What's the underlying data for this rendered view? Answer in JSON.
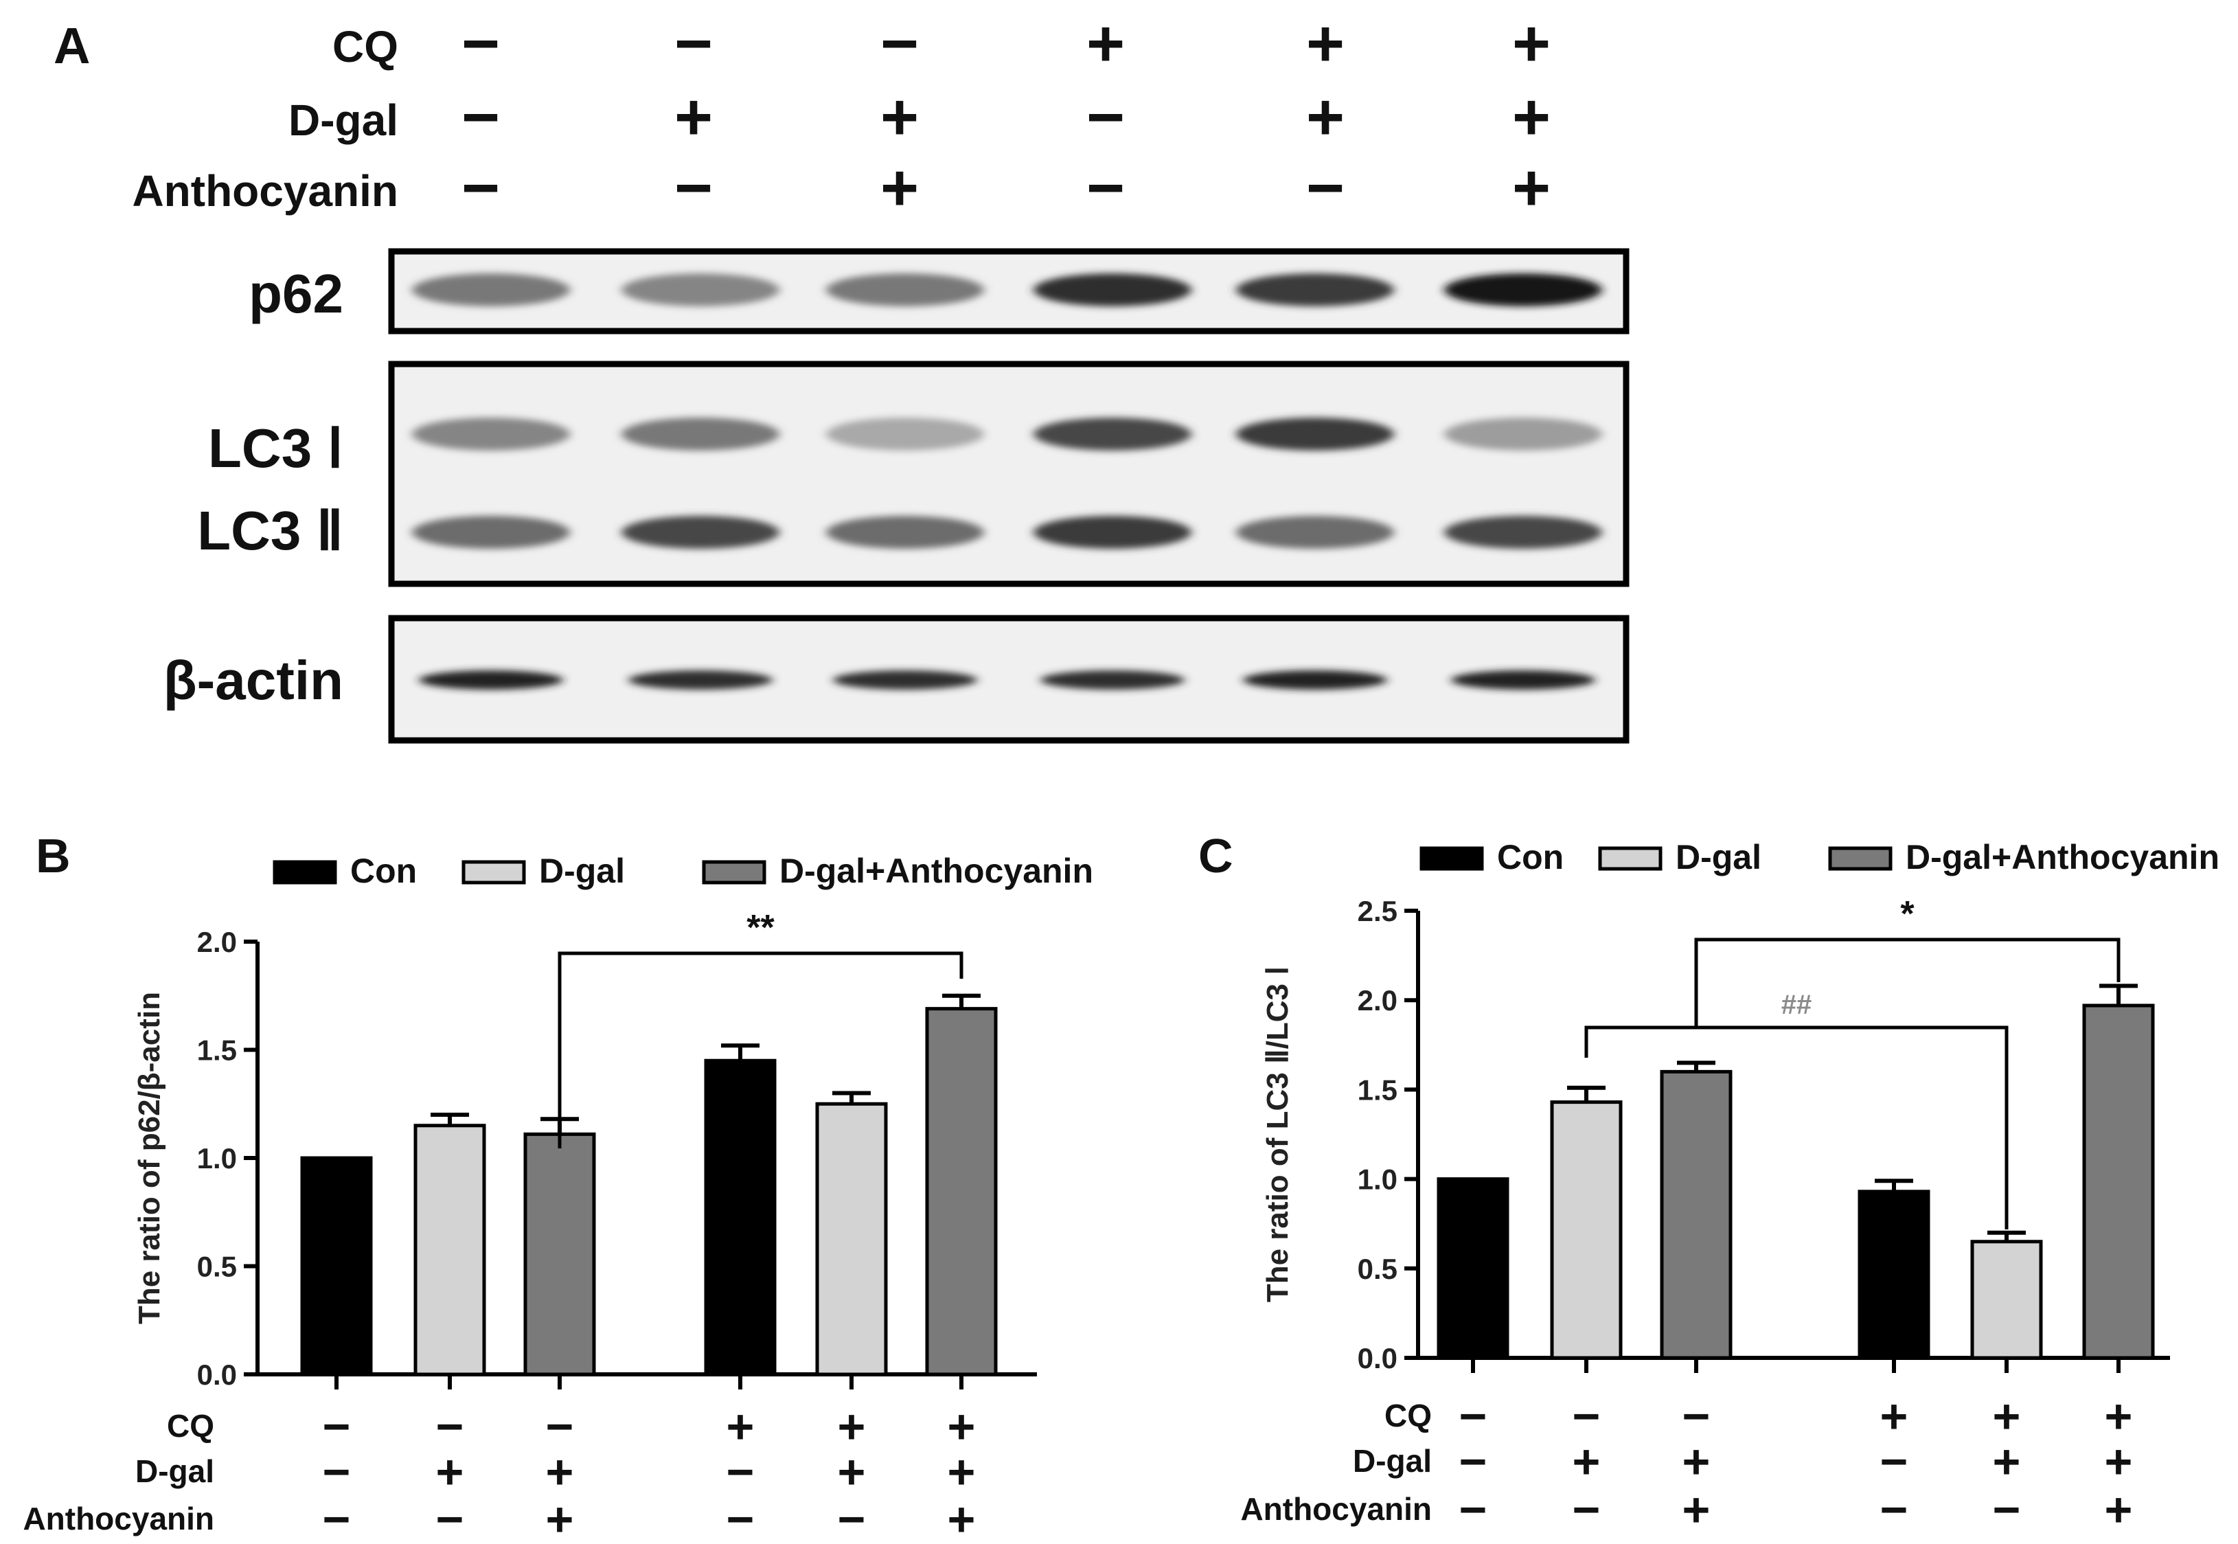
{
  "panel_a": {
    "letter": "A",
    "rows": [
      {
        "label": "CQ",
        "signs": [
          "−",
          "−",
          "−",
          "+",
          "+",
          "+"
        ]
      },
      {
        "label": "D-gal",
        "signs": [
          "−",
          "+",
          "+",
          "−",
          "+",
          "+"
        ]
      },
      {
        "label": "Anthocyanin",
        "signs": [
          "−",
          "−",
          "+",
          "−",
          "−",
          "+"
        ]
      }
    ],
    "blots": [
      {
        "labels": [
          "p62"
        ],
        "bands": [
          [
            0.55,
            0.5,
            0.55,
            0.85,
            0.8,
            0.95
          ]
        ]
      },
      {
        "labels": [
          "LC3 Ⅰ",
          "LC3 Ⅱ"
        ],
        "bands": [
          [
            0.5,
            0.55,
            0.35,
            0.75,
            0.8,
            0.4
          ],
          [
            0.6,
            0.75,
            0.6,
            0.8,
            0.6,
            0.75
          ]
        ]
      },
      {
        "labels": [
          "β-actin"
        ],
        "bands": [
          [
            0.9,
            0.85,
            0.85,
            0.85,
            0.9,
            0.9
          ]
        ]
      }
    ]
  },
  "legend": [
    {
      "name": "Con",
      "color": "#000000"
    },
    {
      "name": "D-gal",
      "color": "#d3d3d3"
    },
    {
      "name": "D-gal+Anthocyanin",
      "color": "#7a7a7a"
    }
  ],
  "chart_data": [
    {
      "panel": "B",
      "type": "bar",
      "ylabel": "The ratio of p62/β-actin",
      "ylim": [
        0,
        2.0
      ],
      "yticks": [
        "0.0",
        "0.5",
        "1.0",
        "1.5",
        "2.0"
      ],
      "groups": [
        "CQ −",
        "CQ +"
      ],
      "series": [
        {
          "name": "Con",
          "values": [
            1.0,
            1.45
          ],
          "errors": [
            0,
            0.07
          ]
        },
        {
          "name": "D-gal",
          "values": [
            1.15,
            1.25
          ],
          "errors": [
            0.05,
            0.05
          ]
        },
        {
          "name": "D-gal+Anthocyanin",
          "values": [
            1.11,
            1.69
          ],
          "errors": [
            0.07,
            0.06
          ]
        }
      ],
      "annotations": [
        {
          "text": "**",
          "from": "CQ − / D-gal+Anthocyanin",
          "to": "CQ + / D-gal+Anthocyanin"
        }
      ],
      "treatments": [
        {
          "label": "CQ",
          "signs": [
            "−",
            "−",
            "−",
            "+",
            "+",
            "+"
          ]
        },
        {
          "label": "D-gal",
          "signs": [
            "−",
            "+",
            "+",
            "−",
            "+",
            "+"
          ]
        },
        {
          "label": "Anthocyanin",
          "signs": [
            "−",
            "−",
            "+",
            "−",
            "−",
            "+"
          ]
        }
      ]
    },
    {
      "panel": "C",
      "type": "bar",
      "ylabel": "The ratio of LC3 Ⅱ/LC3 Ⅰ",
      "ylim": [
        0,
        2.5
      ],
      "yticks": [
        "0.0",
        "0.5",
        "1.0",
        "1.5",
        "2.0",
        "2.5"
      ],
      "groups": [
        "CQ −",
        "CQ +"
      ],
      "series": [
        {
          "name": "Con",
          "values": [
            1.0,
            0.93
          ],
          "errors": [
            0,
            0.06
          ]
        },
        {
          "name": "D-gal",
          "values": [
            1.43,
            0.65
          ],
          "errors": [
            0.08,
            0.05
          ]
        },
        {
          "name": "D-gal+Anthocyanin",
          "values": [
            1.6,
            1.97
          ],
          "errors": [
            0.05,
            0.11
          ]
        }
      ],
      "annotations": [
        {
          "text": "##",
          "from": "CQ − / D-gal",
          "to": "CQ + / D-gal"
        },
        {
          "text": "*",
          "from": "CQ − / D-gal+Anthocyanin",
          "to": "CQ + / D-gal+Anthocyanin"
        }
      ],
      "treatments": [
        {
          "label": "CQ",
          "signs": [
            "−",
            "−",
            "−",
            "+",
            "+",
            "+"
          ]
        },
        {
          "label": "D-gal",
          "signs": [
            "−",
            "+",
            "+",
            "−",
            "+",
            "+"
          ]
        },
        {
          "label": "Anthocyanin",
          "signs": [
            "−",
            "−",
            "+",
            "−",
            "−",
            "+"
          ]
        }
      ]
    }
  ]
}
